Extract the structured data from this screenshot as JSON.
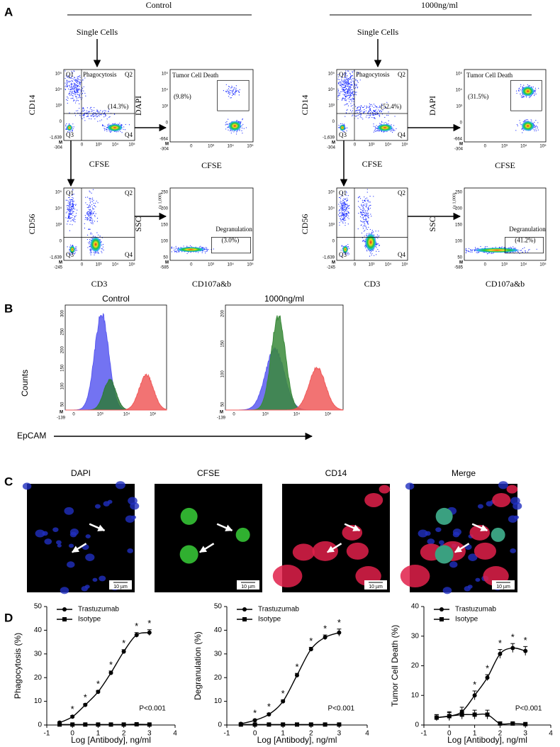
{
  "panel_a": {
    "label": "A",
    "conditions": [
      {
        "title": "Control",
        "gate": "Single Cells",
        "plots": [
          {
            "ylabel": "CD14",
            "xlabel": "CFSE",
            "yticks": [
              "10⁵",
              "10⁴",
              "10³",
              "0",
              "-1,639"
            ],
            "xticks": [
              "-304",
              "0",
              "10³",
              "10⁴",
              "10⁵"
            ],
            "corner": "M",
            "quadrants": [
              "Q1",
              "Q2",
              "Q3",
              "Q4"
            ],
            "gate_label": "Phagocytosis",
            "percent": "(14.3%)"
          },
          {
            "ylabel": "DAPI",
            "xlabel": "CFSE",
            "yticks": [
              "10⁵",
              "10⁴",
              "10³",
              "0",
              "-664"
            ],
            "xticks": [
              "-304",
              "0",
              "10³",
              "10⁴",
              "10⁵"
            ],
            "corner": "M",
            "gate_label": "Tumor Cell Death",
            "percent": "(9.8%)"
          },
          {
            "ylabel": "CD56",
            "xlabel": "CD3",
            "yticks": [
              "10⁵",
              "10⁴",
              "10³",
              "0",
              "-1,639"
            ],
            "xticks": [
              "-245",
              "0",
              "10³",
              "10⁴",
              "10⁵"
            ],
            "corner": "M",
            "quadrants": [
              "Q1",
              "Q2",
              "Q3",
              "Q4"
            ]
          },
          {
            "ylabel": "SSC",
            "xlabel": "CD107a&b",
            "yticks": [
              "250",
              "200",
              "150",
              "100",
              "50"
            ],
            "xticks": [
              "-585",
              "0",
              "10³",
              "10⁴",
              "10⁵"
            ],
            "corner": "M",
            "y_multiplier": "(x 1,000)",
            "gate_label": "Degranulation",
            "percent": "(3.0%)"
          }
        ]
      },
      {
        "title": "1000ng/ml",
        "gate": "Single Cells",
        "plots": [
          {
            "ylabel": "CD14",
            "xlabel": "CFSE",
            "yticks": [
              "10⁵",
              "10⁴",
              "10³",
              "0",
              "-1,639"
            ],
            "xticks": [
              "-304",
              "0",
              "10³",
              "10⁴",
              "10⁵"
            ],
            "corner": "M",
            "quadrants": [
              "Q1",
              "Q2",
              "Q3",
              "Q4"
            ],
            "gate_label": "Phagocytosis",
            "percent": "(52.4%)"
          },
          {
            "ylabel": "DAPI",
            "xlabel": "CFSE",
            "yticks": [
              "10⁵",
              "10⁴",
              "10³",
              "0",
              "-664"
            ],
            "xticks": [
              "-304",
              "0",
              "10³",
              "10⁴",
              "10⁵"
            ],
            "corner": "M",
            "gate_label": "Tumor Cell Death",
            "percent": "(31.5%)"
          },
          {
            "ylabel": "CD56",
            "xlabel": "CD3",
            "yticks": [
              "10⁵",
              "10⁴",
              "10³",
              "0",
              "-1,639"
            ],
            "xticks": [
              "-245",
              "0",
              "10³",
              "10⁴",
              "10⁵"
            ],
            "corner": "M",
            "quadrants": [
              "Q1",
              "Q2",
              "Q3",
              "Q4"
            ]
          },
          {
            "ylabel": "SSC",
            "xlabel": "CD107a&b",
            "yticks": [
              "250",
              "200",
              "150",
              "100",
              "50"
            ],
            "xticks": [
              "-585",
              "0",
              "10³",
              "10⁴",
              "10⁵"
            ],
            "corner": "M",
            "y_multiplier": "(x 1,000)",
            "gate_label": "Degranulation",
            "percent": "(41.2%)"
          }
        ]
      }
    ]
  },
  "panel_b": {
    "label": "B",
    "ylabel": "Counts",
    "xlabel": "EpCAM",
    "plots": [
      {
        "title": "Control",
        "yticks": [
          "50",
          "100",
          "150",
          "200",
          "250",
          "300"
        ],
        "xticks": [
          "-139",
          "0",
          "10³",
          "10⁴",
          "10⁵"
        ],
        "corner": "M"
      },
      {
        "title": "1000ng/ml",
        "yticks": [
          "50",
          "100",
          "150",
          "200"
        ],
        "xticks": [
          "-139",
          "0",
          "10³",
          "10⁴",
          "10⁵"
        ],
        "corner": "M"
      }
    ]
  },
  "panel_c": {
    "label": "C",
    "images": [
      {
        "title": "DAPI",
        "scale_bar": "10 µm"
      },
      {
        "title": "CFSE",
        "scale_bar": "10 µm"
      },
      {
        "title": "CD14",
        "scale_bar": "10 µm"
      },
      {
        "title": "Merge",
        "scale_bar": "10 µm"
      }
    ]
  },
  "panel_d": {
    "label": "D"
  },
  "chart_data": [
    {
      "type": "line",
      "ylabel": "Phagocytosis (%)",
      "xlabel": "Log [Antibody], ng/ml",
      "annotation": "P<0.001",
      "x": [
        -0.5,
        0,
        0.5,
        1,
        1.5,
        2,
        2.5,
        3
      ],
      "xlim": [
        -1,
        4
      ],
      "xticks": [
        -1,
        0,
        1,
        2,
        3,
        4
      ],
      "ylim": [
        0,
        50
      ],
      "yticks": [
        0,
        10,
        20,
        30,
        40,
        50
      ],
      "series": [
        {
          "name": "Trastuzumab",
          "color": "#000000",
          "marker": "circle",
          "values": [
            1,
            3.5,
            8.5,
            14,
            22,
            31,
            38,
            39
          ],
          "errors": [
            0.4,
            0.5,
            0.5,
            0.6,
            0.8,
            0.8,
            1,
            1.2
          ],
          "significance": [
            null,
            "*",
            "*",
            "*",
            "*",
            "*",
            "*",
            "*"
          ]
        },
        {
          "name": "Isotype",
          "color": "#000000",
          "marker": "square",
          "values": [
            0.2,
            0.2,
            0.2,
            0.2,
            0.2,
            0.2,
            0.3,
            0.2
          ],
          "errors": [
            0.2,
            0.2,
            0.2,
            0.2,
            0.2,
            0.2,
            0.2,
            0.2
          ]
        }
      ]
    },
    {
      "type": "line",
      "ylabel": "Degranulation (%)",
      "xlabel": "Log [Antibody], ng/ml",
      "annotation": "P<0.001",
      "x": [
        -0.5,
        0,
        0.5,
        1,
        1.5,
        2,
        2.5,
        3
      ],
      "xlim": [
        -1,
        4
      ],
      "xticks": [
        -1,
        0,
        1,
        2,
        3,
        4
      ],
      "ylim": [
        0,
        50
      ],
      "yticks": [
        0,
        10,
        20,
        30,
        40,
        50
      ],
      "series": [
        {
          "name": "Trastuzumab",
          "color": "#000000",
          "marker": "circle",
          "values": [
            0.5,
            2,
            4.5,
            10,
            21,
            32,
            37,
            39
          ],
          "errors": [
            0.3,
            0.4,
            0.5,
            0.6,
            0.8,
            0.8,
            1,
            1.5
          ],
          "significance": [
            null,
            "*",
            "*",
            "*",
            "*",
            "*",
            "*",
            "*"
          ]
        },
        {
          "name": "Isotype",
          "color": "#000000",
          "marker": "square",
          "values": [
            0.2,
            0.2,
            0.2,
            0.2,
            0.2,
            0.2,
            0.2,
            0.2
          ],
          "errors": [
            0.2,
            0.2,
            0.2,
            0.2,
            0.2,
            0.2,
            0.2,
            0.2
          ]
        }
      ]
    },
    {
      "type": "line",
      "ylabel": "Tumor Cell Death (%)",
      "xlabel": "Log [Antibody], ng/ml",
      "annotation": "P<0.001",
      "x": [
        -0.5,
        0,
        0.5,
        1,
        1.5,
        2,
        2.5,
        3
      ],
      "xlim": [
        -1,
        4
      ],
      "xticks": [
        -1,
        0,
        1,
        2,
        3,
        4
      ],
      "ylim": [
        0,
        40
      ],
      "yticks": [
        0,
        10,
        20,
        30,
        40
      ],
      "series": [
        {
          "name": "Trastuzumab",
          "color": "#000000",
          "marker": "circle",
          "values": [
            2.5,
            3,
            4.5,
            10,
            16,
            24,
            26,
            25
          ],
          "errors": [
            1,
            1.2,
            1.5,
            1.5,
            1,
            1.5,
            1.5,
            1.5
          ],
          "significance": [
            null,
            null,
            null,
            "*",
            "*",
            "*",
            "*",
            "*"
          ]
        },
        {
          "name": "Isotype",
          "color": "#000000",
          "marker": "square",
          "values": [
            2.5,
            3,
            3.5,
            3.5,
            3.5,
            0.5,
            0.5,
            0.3
          ],
          "errors": [
            1,
            1.5,
            1.5,
            1.5,
            1.5,
            0.5,
            0.3,
            0.2
          ]
        }
      ]
    }
  ]
}
